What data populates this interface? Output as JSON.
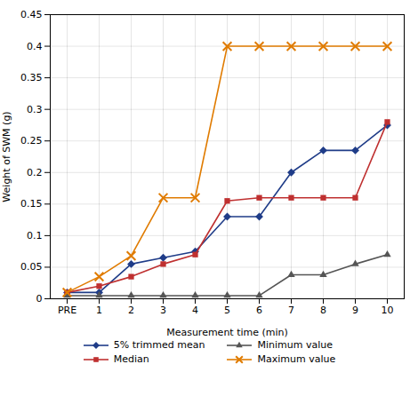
{
  "chart_data": {
    "type": "line",
    "categories": [
      "PRE",
      "1",
      "2",
      "3",
      "4",
      "5",
      "6",
      "7",
      "8",
      "9",
      "10"
    ],
    "series": [
      {
        "name": "5% trimmed mean",
        "color": "#1f3c88",
        "marker": "diamond",
        "values": [
          0.01,
          0.01,
          0.055,
          0.065,
          0.075,
          0.13,
          0.13,
          0.2,
          0.235,
          0.235,
          0.275
        ]
      },
      {
        "name": "Median",
        "color": "#bf3030",
        "marker": "square",
        "values": [
          0.01,
          0.02,
          0.035,
          0.055,
          0.07,
          0.155,
          0.16,
          0.16,
          0.16,
          0.16,
          0.28
        ]
      },
      {
        "name": "Minimum value",
        "color": "#555555",
        "marker": "triangle",
        "values": [
          0.005,
          0.005,
          0.005,
          0.005,
          0.005,
          0.005,
          0.005,
          0.038,
          0.038,
          0.055,
          0.07
        ]
      },
      {
        "name": "Maximum value",
        "color": "#e07b00",
        "marker": "x",
        "values": [
          0.01,
          0.035,
          0.068,
          0.16,
          0.16,
          0.4,
          0.4,
          0.4,
          0.4,
          0.4,
          0.4
        ]
      }
    ],
    "xlabel": "Measurement time (min)",
    "ylabel": "Weight of SWM (g)",
    "ylim": [
      0,
      0.45
    ],
    "yticks": [
      0,
      0.05,
      0.1,
      0.15,
      0.2,
      0.25,
      0.3,
      0.35,
      0.4,
      0.45
    ],
    "grid": true,
    "legend": "bottom"
  }
}
